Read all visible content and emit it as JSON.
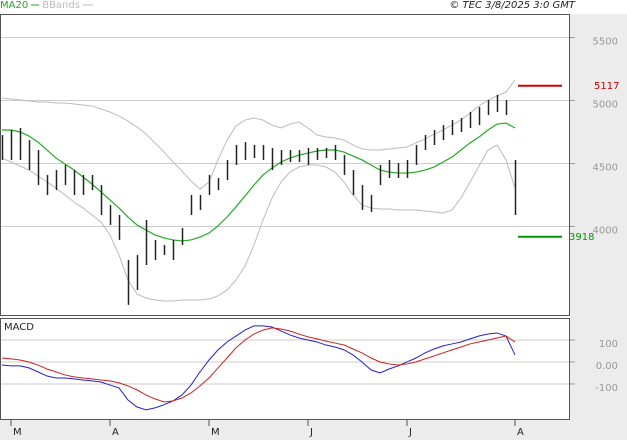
{
  "chart_data": [
    {
      "type": "ohlc",
      "source": "© TEC 3/8/2025 3:0 GMT",
      "categories": [
        null,
        "M",
        null,
        null,
        null,
        null,
        null,
        null,
        null,
        null,
        null,
        null,
        "A",
        null,
        null,
        null,
        null,
        null,
        null,
        null,
        null,
        null,
        null,
        "M",
        null,
        null,
        null,
        null,
        null,
        null,
        null,
        null,
        null,
        null,
        "J",
        null,
        null,
        null,
        null,
        null,
        null,
        null,
        null,
        null,
        null,
        "J",
        null,
        null,
        null,
        null,
        null,
        null,
        null,
        null,
        null,
        null,
        null,
        "A"
      ],
      "high": [
        4726,
        4766,
        4782,
        4686,
        4607,
        4409,
        4448,
        4488,
        4448,
        4409,
        4409,
        4329,
        4170,
        4091,
        3734,
        3773,
        4051,
        3893,
        3853,
        3893,
        3988,
        4250,
        4250,
        4409,
        4385,
        4528,
        4647,
        4670,
        4647,
        4647,
        4623,
        4607,
        4607,
        4607,
        4623,
        4623,
        4623,
        4647,
        4567,
        4448,
        4329,
        4250,
        4488,
        4528,
        4504,
        4528,
        4647,
        4726,
        4766,
        4805,
        4845,
        4861,
        4909,
        4948,
        5004,
        5044,
        5004,
        4528
      ],
      "low": [
        4528,
        4528,
        4528,
        4448,
        4329,
        4250,
        4289,
        4329,
        4250,
        4250,
        4289,
        4091,
        4012,
        3893,
        3377,
        3496,
        3694,
        3734,
        3773,
        3734,
        3853,
        4091,
        4131,
        4250,
        4289,
        4369,
        4488,
        4528,
        4543,
        4528,
        4448,
        4488,
        4512,
        4512,
        4488,
        4528,
        4543,
        4528,
        4409,
        4250,
        4131,
        4115,
        4329,
        4385,
        4385,
        4385,
        4488,
        4607,
        4647,
        4686,
        4726,
        4750,
        4782,
        4805,
        4885,
        4909,
        4885,
        4091
      ],
      "bar_color": "#222222",
      "series": [
        {
          "name": "MA20",
          "color": "#22aa22",
          "values": [
            4766,
            4766,
            4750,
            4718,
            4670,
            4607,
            4543,
            4496,
            4448,
            4393,
            4337,
            4274,
            4210,
            4147,
            4075,
            4012,
            3972,
            3933,
            3909,
            3893,
            3885,
            3893,
            3916,
            3948,
            4004,
            4075,
            4155,
            4242,
            4329,
            4409,
            4464,
            4512,
            4543,
            4567,
            4583,
            4599,
            4607,
            4607,
            4591,
            4559,
            4528,
            4488,
            4448,
            4432,
            4424,
            4424,
            4432,
            4448,
            4472,
            4512,
            4551,
            4607,
            4663,
            4710,
            4766,
            4813,
            4821,
            4782
          ]
        }
      ],
      "bbands": {
        "name": "BBands",
        "color": "#bbbbbb",
        "upper": [
          5020,
          5012,
          5004,
          4996,
          4988,
          4988,
          4980,
          4980,
          4972,
          4964,
          4956,
          4933,
          4909,
          4877,
          4837,
          4790,
          4734,
          4663,
          4591,
          4512,
          4440,
          4361,
          4297,
          4353,
          4528,
          4686,
          4798,
          4845,
          4861,
          4845,
          4805,
          4782,
          4813,
          4829,
          4782,
          4726,
          4710,
          4702,
          4686,
          4647,
          4615,
          4607,
          4607,
          4615,
          4623,
          4631,
          4663,
          4694,
          4734,
          4766,
          4805,
          4845,
          4901,
          4956,
          5004,
          5036,
          5067,
          5163
        ],
        "lower": [
          4543,
          4512,
          4480,
          4448,
          4401,
          4353,
          4305,
          4250,
          4194,
          4147,
          4091,
          4035,
          3932,
          3773,
          3575,
          3464,
          3432,
          3416,
          3408,
          3408,
          3416,
          3416,
          3416,
          3424,
          3448,
          3495,
          3575,
          3686,
          3853,
          4051,
          4226,
          4353,
          4432,
          4472,
          4488,
          4488,
          4472,
          4432,
          4353,
          4250,
          4170,
          4147,
          4139,
          4139,
          4131,
          4131,
          4131,
          4123,
          4115,
          4107,
          4131,
          4226,
          4353,
          4480,
          4607,
          4647,
          4528,
          4305
        ]
      },
      "levels": [
        {
          "value": 5117,
          "color": "#cc0000"
        },
        {
          "value": 3918,
          "color": "#009900"
        }
      ],
      "ylim": [
        3297,
        5687
      ],
      "yticks": [
        4000,
        4500,
        5000,
        5500
      ],
      "grid": true
    },
    {
      "type": "line",
      "title": "MACD",
      "series": [
        {
          "color": "#2222cc",
          "values": [
            -14,
            -18,
            -18,
            -27,
            -45,
            -64,
            -73,
            -73,
            -77,
            -82,
            -86,
            -91,
            -105,
            -118,
            -173,
            -205,
            -218,
            -209,
            -195,
            -177,
            -150,
            -105,
            -45,
            9,
            55,
            91,
            118,
            145,
            164,
            164,
            159,
            141,
            123,
            109,
            100,
            91,
            77,
            68,
            55,
            32,
            0,
            -36,
            -50,
            -32,
            -18,
            0,
            18,
            41,
            59,
            73,
            82,
            91,
            105,
            118,
            127,
            132,
            118,
            32
          ]
        },
        {
          "color": "#cc2222",
          "values": [
            18,
            14,
            9,
            0,
            -14,
            -32,
            -45,
            -59,
            -68,
            -73,
            -77,
            -82,
            -86,
            -95,
            -109,
            -127,
            -150,
            -168,
            -182,
            -177,
            -164,
            -141,
            -109,
            -73,
            -27,
            18,
            64,
            100,
            127,
            145,
            155,
            150,
            141,
            127,
            114,
            105,
            95,
            86,
            77,
            59,
            41,
            18,
            0,
            -9,
            -14,
            -9,
            0,
            14,
            27,
            41,
            55,
            68,
            82,
            91,
            100,
            109,
            118,
            91
          ]
        }
      ],
      "ylim": [
        -264,
        200
      ],
      "yticks": [
        100,
        {
          "value": 0,
          "label": "0.00"
        },
        -100
      ],
      "grid": true
    }
  ]
}
